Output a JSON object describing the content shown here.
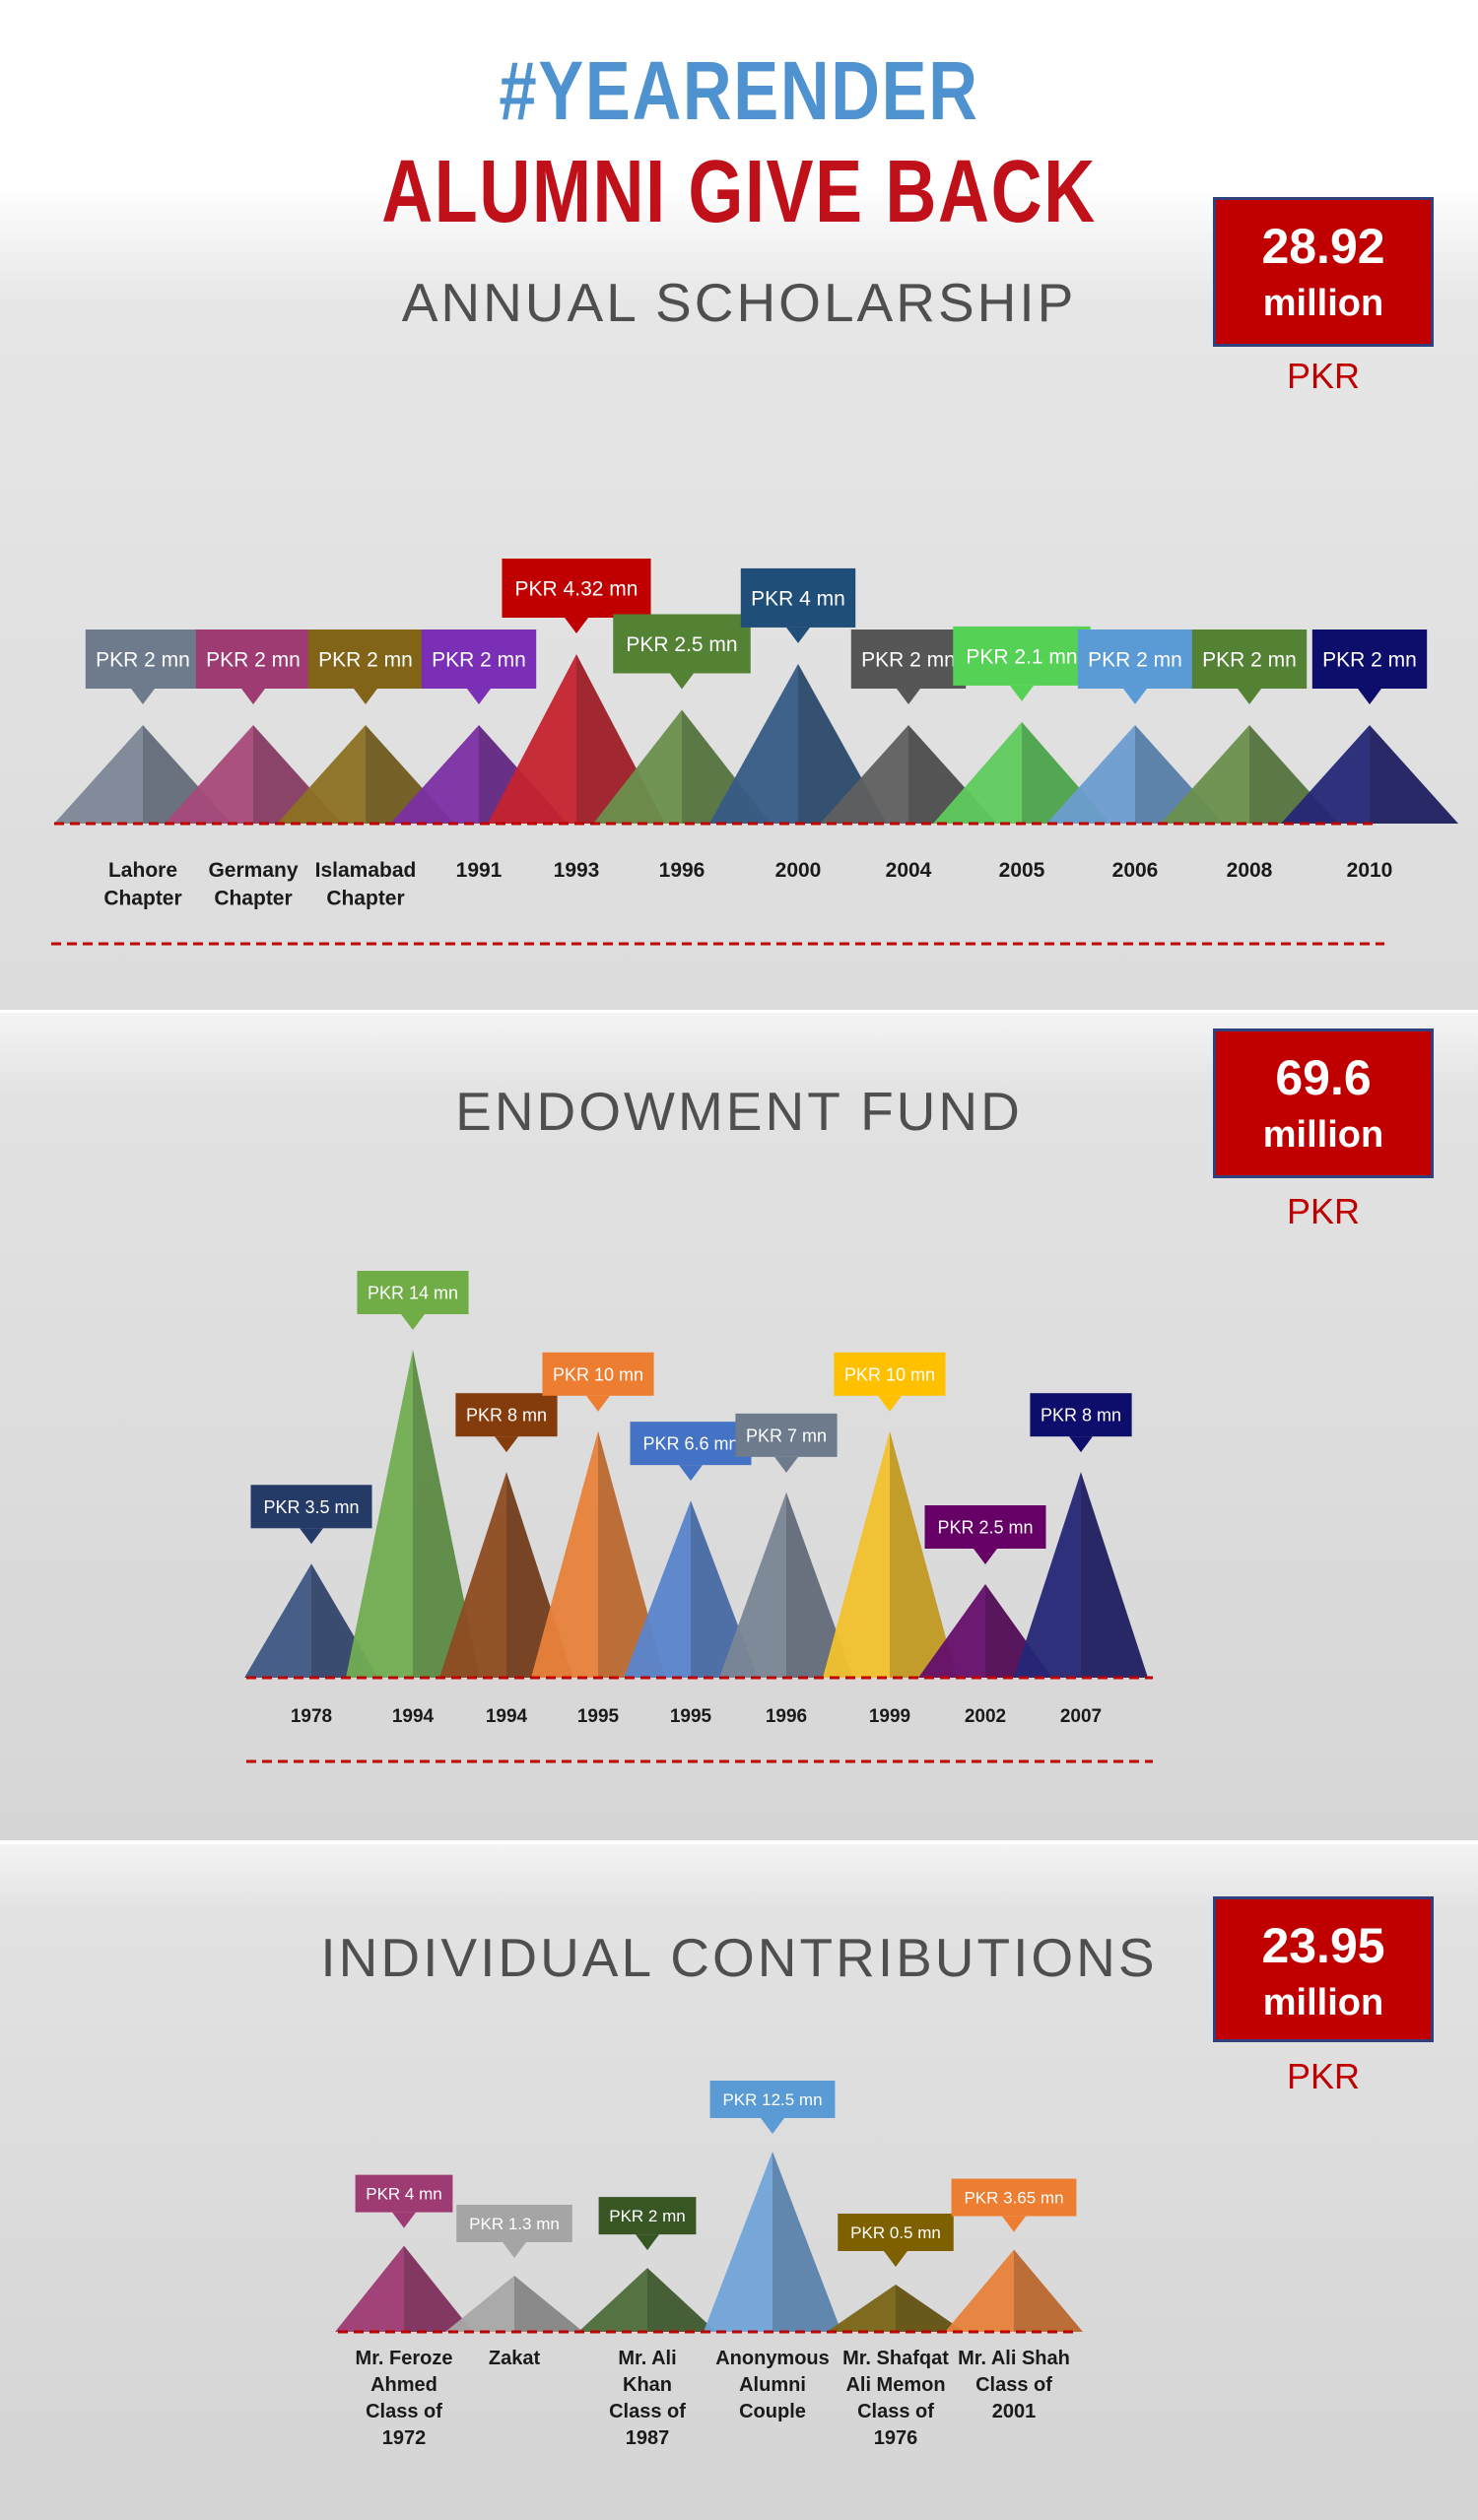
{
  "hashtag": "#YEARENDER",
  "headline": "ALUMNI GIVE BACK",
  "sections": [
    {
      "title": "ANNUAL SCHOLARSHIP",
      "total_amount": "28.92",
      "total_unit": "million",
      "currency": "PKR"
    },
    {
      "title": "ENDOWMENT FUND",
      "total_amount": "69.6",
      "total_unit": "million",
      "currency": "PKR"
    },
    {
      "title": "INDIVIDUAL CONTRIBUTIONS",
      "total_amount": "23.95",
      "total_unit": "million",
      "currency": "PKR"
    }
  ],
  "chart_data": [
    {
      "type": "bar",
      "title": "ANNUAL SCHOLARSHIP",
      "categories": [
        "Lahore Chapter",
        "Germany Chapter",
        "Islamabad Chapter",
        "1991",
        "1993",
        "1996",
        "2000",
        "2004",
        "2005",
        "2006",
        "2008",
        "2010"
      ],
      "values": [
        2,
        2,
        2,
        2,
        4.32,
        2.5,
        4,
        2,
        2.1,
        2,
        2,
        2
      ],
      "labels": [
        "PKR 2 mn",
        "PKR 2 mn",
        "PKR 2 mn",
        "PKR 2 mn",
        "PKR 4.32 mn",
        "PKR 2.5 mn",
        "PKR 4 mn",
        "PKR 2 mn",
        "PKR 2.1 mn",
        "PKR 2 mn",
        "PKR 2 mn",
        "PKR 2 mn"
      ],
      "colors": [
        "#7b8696",
        "#a6497a",
        "#8c7124",
        "#7a2fa3",
        "#c4232f",
        "#6a8f4d",
        "#365b86",
        "#5f5f5f",
        "#5ecb5c",
        "#6c9ccf",
        "#6a8f4d",
        "#252777"
      ],
      "label_colors": [
        "#6e7b8d",
        "#9e3b73",
        "#826419",
        "#7a2fb6",
        "#c00000",
        "#548235",
        "#1f4e79",
        "#565656",
        "#55d155",
        "#5b9bd5",
        "#548235",
        "#0d0d6b"
      ],
      "ylim": [
        0,
        4.32
      ]
    },
    {
      "type": "bar",
      "title": "ENDOWMENT FUND",
      "categories": [
        "1978",
        "1994",
        "1994",
        "1995",
        "1995",
        "1996",
        "1999",
        "2002",
        "2007"
      ],
      "values": [
        3.5,
        14,
        8,
        10,
        6.6,
        7,
        10,
        2.5,
        8
      ],
      "labels": [
        "PKR 3.5 mn",
        "PKR 14 mn",
        "PKR 8 mn",
        "PKR 10 mn",
        "PKR 6.6 mn",
        "PKR 7 mn",
        "PKR 10 mn",
        "PKR 2.5 mn",
        "PKR 8 mn"
      ],
      "colors": [
        "#3e5784",
        "#72ad52",
        "#8e4c22",
        "#e8823b",
        "#5a85cc",
        "#7a8696",
        "#f2c12c",
        "#650f6b",
        "#252777"
      ],
      "label_colors": [
        "#243a67",
        "#70ad47",
        "#843c0c",
        "#ed7d31",
        "#4472c4",
        "#6e7b8d",
        "#ffc000",
        "#660066",
        "#0d0d6b"
      ],
      "ylim": [
        0,
        14
      ]
    },
    {
      "type": "bar",
      "title": "INDIVIDUAL CONTRIBUTIONS",
      "categories": [
        "Mr. Feroze Ahmed Class of 1972",
        "Zakat",
        "Mr. Ali Khan Class of 1987",
        "Anonymous Alumni Couple",
        "Mr. Shafqat Ali Memon Class of 1976",
        "Mr. Ali Shah Class of 2001"
      ],
      "values": [
        4,
        1.3,
        2,
        12.5,
        0.5,
        3.65
      ],
      "labels": [
        "PKR 4 mn",
        "PKR 1.3 mn",
        "PKR 2 mn",
        "PKR 12.5 mn",
        "PKR 0.5 mn",
        "PKR 3.65 mn"
      ],
      "colors": [
        "#9e3b73",
        "#a8a8a8",
        "#4e6e3a",
        "#72a4d8",
        "#7a6516",
        "#e8823b"
      ],
      "label_colors": [
        "#9e3b73",
        "#a5a5a5",
        "#375623",
        "#5b9bd5",
        "#7f6000",
        "#ed7d31"
      ],
      "ylim": [
        0,
        12.5
      ]
    }
  ]
}
